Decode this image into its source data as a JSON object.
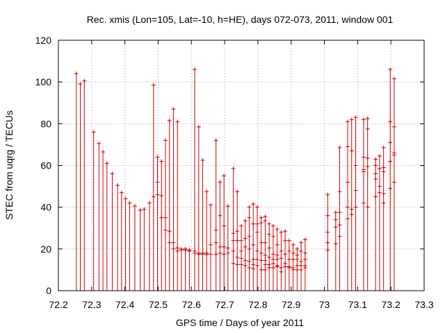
{
  "chart_data": {
    "type": "scatter",
    "title": "Rec. xmis (Lon=105, Lat=-10, h=HE), days 072-073, 2011, window 001",
    "xlabel": "GPS time / Days of year 2011",
    "ylabel": "STEC from uqrg / TECUs",
    "xlim": [
      72.2,
      73.3
    ],
    "ylim": [
      0,
      120
    ],
    "xticks": [
      "72.2",
      "72.3",
      "72.4",
      "72.5",
      "72.6",
      "72.7",
      "72.8",
      "72.9",
      "73",
      "73.1",
      "73.2",
      "73.3"
    ],
    "yticks": [
      "0",
      "20",
      "40",
      "60",
      "80",
      "100",
      "120"
    ],
    "grid": true,
    "colors": {
      "series": "#d00000",
      "grid": "#a0a0a0",
      "axis": "#000000"
    },
    "stems": [
      {
        "x": 72.254,
        "y": [
          104
        ]
      },
      {
        "x": 72.266,
        "y": [
          99
        ]
      },
      {
        "x": 72.278,
        "y": [
          100.5
        ]
      },
      {
        "x": 72.306,
        "y": [
          76
        ]
      },
      {
        "x": 72.322,
        "y": [
          70.5
        ]
      },
      {
        "x": 72.334,
        "y": [
          66.5
        ]
      },
      {
        "x": 72.346,
        "y": [
          61
        ]
      },
      {
        "x": 72.362,
        "y": [
          56
        ]
      },
      {
        "x": 72.378,
        "y": [
          50.5
        ]
      },
      {
        "x": 72.39,
        "y": [
          47
        ]
      },
      {
        "x": 72.402,
        "y": [
          44
        ]
      },
      {
        "x": 72.414,
        "y": [
          42
        ]
      },
      {
        "x": 72.43,
        "y": [
          40.5
        ]
      },
      {
        "x": 72.446,
        "y": [
          38.5
        ]
      },
      {
        "x": 72.458,
        "y": [
          39
        ]
      },
      {
        "x": 72.474,
        "y": [
          42
        ]
      },
      {
        "x": 72.486,
        "y": [
          98.5,
          45
        ]
      },
      {
        "x": 72.498,
        "y": [
          64,
          52,
          46
        ]
      },
      {
        "x": 72.51,
        "y": [
          62,
          45.5,
          35
        ]
      },
      {
        "x": 72.522,
        "y": [
          72,
          35,
          29
        ]
      },
      {
        "x": 72.534,
        "y": [
          81.5,
          28.5,
          23
        ]
      },
      {
        "x": 72.546,
        "y": [
          87,
          23,
          20
        ]
      },
      {
        "x": 72.558,
        "y": [
          81,
          20.5,
          19
        ]
      },
      {
        "x": 72.57,
        "y": [
          20,
          19.5
        ]
      },
      {
        "x": 72.582,
        "y": [
          20,
          19.5
        ]
      },
      {
        "x": 72.594,
        "y": [
          19,
          19.5
        ]
      },
      {
        "x": 72.61,
        "y": [
          106,
          19,
          18
        ]
      },
      {
        "x": 72.622,
        "y": [
          78.5,
          18,
          17.5
        ]
      },
      {
        "x": 72.634,
        "y": [
          62.5,
          18,
          17.5
        ]
      },
      {
        "x": 72.646,
        "y": [
          47.5,
          18,
          17.5
        ]
      },
      {
        "x": 72.658,
        "y": [
          41,
          22,
          17.5
        ]
      },
      {
        "x": 72.674,
        "y": [
          72,
          29,
          23,
          17.5
        ]
      },
      {
        "x": 72.686,
        "y": [
          52,
          36,
          21,
          18
        ]
      },
      {
        "x": 72.698,
        "y": [
          55,
          31,
          21,
          17.5
        ]
      },
      {
        "x": 72.71,
        "y": [
          40.5,
          20.5,
          18
        ]
      },
      {
        "x": 72.726,
        "y": [
          58.5,
          27.5,
          24,
          19,
          13
        ]
      },
      {
        "x": 72.738,
        "y": [
          47.5,
          28.5,
          24,
          16,
          12.5
        ]
      },
      {
        "x": 72.75,
        "y": [
          31,
          24,
          19,
          15.5,
          12.5
        ]
      },
      {
        "x": 72.762,
        "y": [
          33.5,
          25,
          21,
          14.5,
          12
        ]
      },
      {
        "x": 72.774,
        "y": [
          40,
          35,
          26,
          20,
          14,
          11
        ]
      },
      {
        "x": 72.786,
        "y": [
          41.5,
          32,
          22,
          15,
          12.5,
          10.5
        ]
      },
      {
        "x": 72.798,
        "y": [
          40,
          32,
          28,
          19,
          15,
          12
        ]
      },
      {
        "x": 72.81,
        "y": [
          35,
          32.5,
          23,
          18,
          14.5,
          10
        ]
      },
      {
        "x": 72.822,
        "y": [
          35.5,
          33.5,
          23,
          17,
          14.5,
          12.5,
          10
        ]
      },
      {
        "x": 72.834,
        "y": [
          32,
          27,
          20.5,
          16,
          12.5,
          11
        ]
      },
      {
        "x": 72.846,
        "y": [
          31,
          26,
          17.5,
          15,
          13,
          11
        ]
      },
      {
        "x": 72.858,
        "y": [
          29.5,
          22,
          17,
          15,
          12,
          11.5
        ]
      },
      {
        "x": 72.87,
        "y": [
          28,
          19,
          15.5,
          11,
          9
        ]
      },
      {
        "x": 72.882,
        "y": [
          28.5,
          24,
          17.5,
          13,
          11.5
        ]
      },
      {
        "x": 72.894,
        "y": [
          24,
          19,
          15,
          11.5,
          11
        ]
      },
      {
        "x": 72.906,
        "y": [
          22,
          18,
          15,
          11,
          10
        ]
      },
      {
        "x": 72.918,
        "y": [
          20,
          17,
          15,
          12,
          10
        ]
      },
      {
        "x": 72.93,
        "y": [
          23,
          19,
          14,
          12,
          10
        ]
      },
      {
        "x": 72.942,
        "y": [
          24.5,
          18,
          15,
          12,
          11
        ]
      },
      {
        "x": 73.01,
        "y": [
          46,
          36,
          28,
          23,
          19.5
        ]
      },
      {
        "x": 73.034,
        "y": [
          37.5,
          34,
          30.5,
          22.5
        ]
      },
      {
        "x": 73.046,
        "y": [
          68.5,
          47.5,
          37.5,
          31.5,
          26
        ]
      },
      {
        "x": 73.07,
        "y": [
          81,
          69,
          52,
          40,
          34.5
        ]
      },
      {
        "x": 73.082,
        "y": [
          82,
          67,
          39,
          36.5
        ]
      },
      {
        "x": 73.094,
        "y": [
          83,
          60,
          48,
          40
        ]
      },
      {
        "x": 73.118,
        "y": [
          82,
          64,
          58,
          57,
          42
        ]
      },
      {
        "x": 73.13,
        "y": [
          82.5,
          77.5,
          63.5,
          59.5,
          40
        ]
      },
      {
        "x": 73.154,
        "y": [
          63,
          60,
          56,
          53.5,
          45
        ]
      },
      {
        "x": 73.166,
        "y": [
          64.5,
          58.5,
          50,
          47
        ]
      },
      {
        "x": 73.178,
        "y": [
          68.5,
          59,
          57,
          46.5,
          42
        ]
      },
      {
        "x": 73.198,
        "y": [
          106,
          81,
          71,
          62,
          49
        ]
      },
      {
        "x": 73.21,
        "y": [
          101.5,
          78.5,
          66,
          65,
          52
        ]
      }
    ]
  }
}
